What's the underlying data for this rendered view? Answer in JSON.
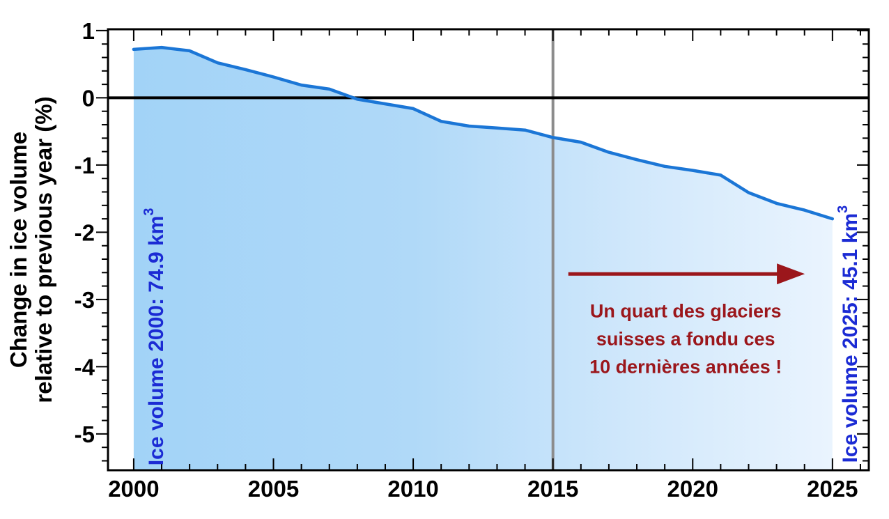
{
  "chart_data": {
    "type": "area",
    "title": "",
    "ylabel_lines": [
      "Change in ice volume",
      "relative to previous year (%)"
    ],
    "xlabel": "",
    "x": [
      2000,
      2001,
      2002,
      2003,
      2004,
      2005,
      2006,
      2007,
      2008,
      2009,
      2010,
      2011,
      2012,
      2013,
      2014,
      2015,
      2016,
      2017,
      2018,
      2019,
      2020,
      2021,
      2022,
      2023,
      2024,
      2025
    ],
    "values": [
      0.72,
      0.75,
      0.7,
      0.52,
      0.42,
      0.31,
      0.19,
      0.13,
      -0.02,
      -0.09,
      -0.16,
      -0.35,
      -0.42,
      -0.45,
      -0.48,
      -0.59,
      -0.66,
      -0.81,
      -0.92,
      -1.02,
      -1.08,
      -1.15,
      -1.41,
      -1.57,
      -1.67,
      -1.8
    ],
    "series_name": "Change in ice volume relative to previous year (%)",
    "xlim": [
      1999.08,
      2026.3
    ],
    "ylim": [
      -5.54,
      1.02
    ],
    "x_minor_step": 1,
    "y_minor_step": 0.2,
    "grid": "off",
    "legend": "none",
    "zero_line_value": 0,
    "vline_year": 2015,
    "x_ticks": [
      {
        "v": 2000,
        "label": "2000"
      },
      {
        "v": 2005,
        "label": "2005"
      },
      {
        "v": 2010,
        "label": "2010"
      },
      {
        "v": 2015,
        "label": "2015"
      },
      {
        "v": 2020,
        "label": "2020"
      },
      {
        "v": 2025,
        "label": "2025"
      }
    ],
    "y_ticks": [
      {
        "v": 1,
        "label": "1"
      },
      {
        "v": 0,
        "label": "0"
      },
      {
        "v": -1,
        "label": "-1"
      },
      {
        "v": -2,
        "label": "-2"
      },
      {
        "v": -3,
        "label": "-3"
      },
      {
        "v": -4,
        "label": "-4"
      },
      {
        "v": -5,
        "label": "-5"
      }
    ],
    "annotations": {
      "left_label": {
        "text": "Ice volume 2000: 74.9 km",
        "sup": "3",
        "year": 2001.05,
        "value": -5.47
      },
      "right_label": {
        "text": "Ice volume 2025: 45.1 km",
        "sup": "3",
        "year": 2025.88,
        "value": -5.43
      },
      "arrow": {
        "from_year": 2015.55,
        "to_year": 2023.05,
        "value": -2.62
      },
      "note": {
        "lines": [
          "Un quart des glaciers",
          "suisses a fondu ces",
          "10 dernières années !"
        ],
        "center_year": 2019.75,
        "top_value": -3.17
      }
    },
    "colors": {
      "line": "#1b76d6",
      "fill_stops": [
        {
          "offset": "0%",
          "color": "#a2d3f7"
        },
        {
          "offset": "40%",
          "color": "#b0d9f8"
        },
        {
          "offset": "70%",
          "color": "#cfe7fb"
        },
        {
          "offset": "100%",
          "color": "#eaf4fe"
        }
      ],
      "zero_line": "#000000",
      "vline": "#8c8c8c",
      "axis": "#000000",
      "tick_label": "#000000",
      "annotation_red": "#9b161b",
      "annotation_blue": "#1b2bd4"
    }
  }
}
